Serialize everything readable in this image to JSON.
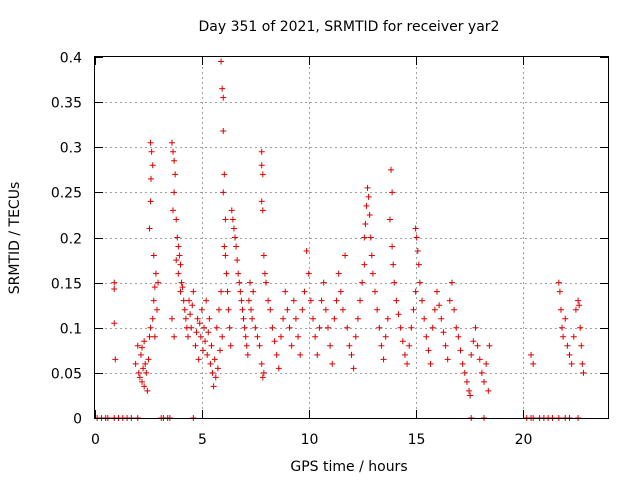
{
  "chart_data": {
    "type": "scatter",
    "title": "Day 351 of 2021, SRMTID for receiver yar2",
    "xlabel": "GPS time / hours",
    "ylabel": "SRMTID / TECUs",
    "xlim": [
      0,
      24
    ],
    "ylim": [
      0,
      0.4
    ],
    "x_ticks": [
      0,
      5,
      10,
      15,
      20
    ],
    "x_tick_labels": [
      "0",
      "5",
      "10",
      "15",
      "20"
    ],
    "y_ticks": [
      0,
      0.05,
      0.1,
      0.15,
      0.2,
      0.25,
      0.3,
      0.35,
      0.4
    ],
    "y_tick_labels": [
      "0",
      "0.05",
      "0.1",
      "0.15",
      "0.2",
      "0.25",
      "0.3",
      "0.35",
      "0.4"
    ],
    "grid": true,
    "marker": "plus",
    "color": "#e00000",
    "series": [
      {
        "name": "SRMTID",
        "points": [
          [
            0.1,
            0
          ],
          [
            0.3,
            0
          ],
          [
            0.5,
            0
          ],
          [
            0.6,
            0
          ],
          [
            0.9,
            0
          ],
          [
            1.1,
            0
          ],
          [
            1.3,
            0
          ],
          [
            1.5,
            0
          ],
          [
            1.7,
            0
          ],
          [
            2.0,
            0
          ],
          [
            3.1,
            0
          ],
          [
            3.2,
            0
          ],
          [
            3.4,
            0
          ],
          [
            3.5,
            0
          ],
          [
            4.6,
            0
          ],
          [
            17.6,
            0
          ],
          [
            18.2,
            0
          ],
          [
            20.2,
            0
          ],
          [
            20.4,
            0
          ],
          [
            20.5,
            0
          ],
          [
            20.8,
            0
          ],
          [
            21.0,
            0
          ],
          [
            21.2,
            0
          ],
          [
            21.4,
            0
          ],
          [
            21.7,
            0
          ],
          [
            22.0,
            0
          ],
          [
            22.2,
            0
          ],
          [
            22.6,
            0
          ],
          [
            0.9,
            0.15
          ],
          [
            0.9,
            0.143
          ],
          [
            0.9,
            0.105
          ],
          [
            0.95,
            0.065
          ],
          [
            1.9,
            0.06
          ],
          [
            2.0,
            0.08
          ],
          [
            2.05,
            0.05
          ],
          [
            2.1,
            0.045
          ],
          [
            2.15,
            0.07
          ],
          [
            2.2,
            0.04
          ],
          [
            2.25,
            0.055
          ],
          [
            2.3,
            0.035
          ],
          [
            2.35,
            0.06
          ],
          [
            2.4,
            0.05
          ],
          [
            2.45,
            0.03
          ],
          [
            2.5,
            0.065
          ],
          [
            2.55,
            0.09
          ],
          [
            2.6,
            0.1
          ],
          [
            2.3,
            0.085
          ],
          [
            2.2,
            0.078
          ],
          [
            2.55,
            0.21
          ],
          [
            2.6,
            0.24
          ],
          [
            2.62,
            0.265
          ],
          [
            2.65,
            0.295
          ],
          [
            2.6,
            0.305
          ],
          [
            2.7,
            0.28
          ],
          [
            2.75,
            0.13
          ],
          [
            2.8,
            0.145
          ],
          [
            2.85,
            0.16
          ],
          [
            2.9,
            0.12
          ],
          [
            2.95,
            0.15
          ],
          [
            2.7,
            0.11
          ],
          [
            2.8,
            0.09
          ],
          [
            2.75,
            0.18
          ],
          [
            3.6,
            0.305
          ],
          [
            3.65,
            0.295
          ],
          [
            3.7,
            0.285
          ],
          [
            3.75,
            0.27
          ],
          [
            3.7,
            0.25
          ],
          [
            3.65,
            0.23
          ],
          [
            3.8,
            0.22
          ],
          [
            3.85,
            0.2
          ],
          [
            3.9,
            0.19
          ],
          [
            3.95,
            0.18
          ],
          [
            4.0,
            0.17
          ],
          [
            4.05,
            0.15
          ],
          [
            4.1,
            0.145
          ],
          [
            4.15,
            0.13
          ],
          [
            4.2,
            0.12
          ],
          [
            4.25,
            0.11
          ],
          [
            4.3,
            0.1
          ],
          [
            4.35,
            0.09
          ],
          [
            4.0,
            0.14
          ],
          [
            3.8,
            0.175
          ],
          [
            3.9,
            0.16
          ],
          [
            4.4,
            0.13
          ],
          [
            4.45,
            0.115
          ],
          [
            4.5,
            0.1
          ],
          [
            4.55,
            0.125
          ],
          [
            4.6,
            0.14
          ],
          [
            3.6,
            0.11
          ],
          [
            3.7,
            0.09
          ],
          [
            4.7,
            0.08
          ],
          [
            4.75,
            0.095
          ],
          [
            4.8,
            0.11
          ],
          [
            4.85,
            0.065
          ],
          [
            4.9,
            0.105
          ],
          [
            4.95,
            0.09
          ],
          [
            5.0,
            0.12
          ],
          [
            5.05,
            0.075
          ],
          [
            5.1,
            0.1
          ],
          [
            5.15,
            0.085
          ],
          [
            5.2,
            0.13
          ],
          [
            5.25,
            0.07
          ],
          [
            5.3,
            0.095
          ],
          [
            5.35,
            0.11
          ],
          [
            5.4,
            0.06
          ],
          [
            5.45,
            0.08
          ],
          [
            5.5,
            0.05
          ],
          [
            5.55,
            0.035
          ],
          [
            5.6,
            0.065
          ],
          [
            5.65,
            0.045
          ],
          [
            5.7,
            0.1
          ],
          [
            5.75,
            0.055
          ],
          [
            5.8,
            0.12
          ],
          [
            5.85,
            0.075
          ],
          [
            5.9,
            0.14
          ],
          [
            5.95,
            0.09
          ],
          [
            5.9,
            0.395
          ],
          [
            5.95,
            0.365
          ],
          [
            6.0,
            0.355
          ],
          [
            6.0,
            0.318
          ],
          [
            6.05,
            0.27
          ],
          [
            6.0,
            0.25
          ],
          [
            6.1,
            0.22
          ],
          [
            6.05,
            0.19
          ],
          [
            6.1,
            0.18
          ],
          [
            6.15,
            0.16
          ],
          [
            6.2,
            0.14
          ],
          [
            6.25,
            0.12
          ],
          [
            6.3,
            0.1
          ],
          [
            6.35,
            0.08
          ],
          [
            6.4,
            0.23
          ],
          [
            6.45,
            0.22
          ],
          [
            6.5,
            0.21
          ],
          [
            6.55,
            0.2
          ],
          [
            6.6,
            0.19
          ],
          [
            6.65,
            0.175
          ],
          [
            6.7,
            0.16
          ],
          [
            6.75,
            0.15
          ],
          [
            6.8,
            0.14
          ],
          [
            6.85,
            0.13
          ],
          [
            6.9,
            0.12
          ],
          [
            6.95,
            0.11
          ],
          [
            7.0,
            0.1
          ],
          [
            7.05,
            0.09
          ],
          [
            7.1,
            0.08
          ],
          [
            7.15,
            0.07
          ],
          [
            7.2,
            0.13
          ],
          [
            7.25,
            0.15
          ],
          [
            7.3,
            0.12
          ],
          [
            7.35,
            0.11
          ],
          [
            7.4,
            0.14
          ],
          [
            7.5,
            0.1
          ],
          [
            7.6,
            0.09
          ],
          [
            7.7,
            0.08
          ],
          [
            7.8,
            0.06
          ],
          [
            7.85,
            0.045
          ],
          [
            7.9,
            0.05
          ],
          [
            7.8,
            0.295
          ],
          [
            7.8,
            0.28
          ],
          [
            7.85,
            0.27
          ],
          [
            7.8,
            0.24
          ],
          [
            7.85,
            0.23
          ],
          [
            7.9,
            0.18
          ],
          [
            7.95,
            0.16
          ],
          [
            8.0,
            0.15
          ],
          [
            8.1,
            0.13
          ],
          [
            8.2,
            0.12
          ],
          [
            8.3,
            0.1
          ],
          [
            8.4,
            0.085
          ],
          [
            8.5,
            0.07
          ],
          [
            8.6,
            0.055
          ],
          [
            8.7,
            0.09
          ],
          [
            8.8,
            0.11
          ],
          [
            8.9,
            0.14
          ],
          [
            9.0,
            0.12
          ],
          [
            9.1,
            0.1
          ],
          [
            9.2,
            0.08
          ],
          [
            9.3,
            0.13
          ],
          [
            9.4,
            0.11
          ],
          [
            9.5,
            0.09
          ],
          [
            9.6,
            0.07
          ],
          [
            9.7,
            0.12
          ],
          [
            9.8,
            0.14
          ],
          [
            9.9,
            0.185
          ],
          [
            10.0,
            0.16
          ],
          [
            10.1,
            0.13
          ],
          [
            10.2,
            0.11
          ],
          [
            10.3,
            0.09
          ],
          [
            10.4,
            0.07
          ],
          [
            10.5,
            0.1
          ],
          [
            10.6,
            0.13
          ],
          [
            10.7,
            0.15
          ],
          [
            10.8,
            0.12
          ],
          [
            10.9,
            0.1
          ],
          [
            11.0,
            0.08
          ],
          [
            11.1,
            0.06
          ],
          [
            11.2,
            0.11
          ],
          [
            11.3,
            0.13
          ],
          [
            11.4,
            0.16
          ],
          [
            11.5,
            0.14
          ],
          [
            11.6,
            0.12
          ],
          [
            11.7,
            0.18
          ],
          [
            11.8,
            0.1
          ],
          [
            11.9,
            0.08
          ],
          [
            12.0,
            0.07
          ],
          [
            12.1,
            0.055
          ],
          [
            12.2,
            0.09
          ],
          [
            12.3,
            0.11
          ],
          [
            12.4,
            0.13
          ],
          [
            12.5,
            0.15
          ],
          [
            12.6,
            0.17
          ],
          [
            12.6,
            0.2
          ],
          [
            12.65,
            0.215
          ],
          [
            12.7,
            0.235
          ],
          [
            12.75,
            0.255
          ],
          [
            12.8,
            0.245
          ],
          [
            12.85,
            0.225
          ],
          [
            12.9,
            0.2
          ],
          [
            12.95,
            0.18
          ],
          [
            13.0,
            0.16
          ],
          [
            13.1,
            0.14
          ],
          [
            13.2,
            0.12
          ],
          [
            13.3,
            0.1
          ],
          [
            13.4,
            0.08
          ],
          [
            13.5,
            0.065
          ],
          [
            13.6,
            0.09
          ],
          [
            13.7,
            0.11
          ],
          [
            13.8,
            0.22
          ],
          [
            13.85,
            0.275
          ],
          [
            13.9,
            0.25
          ],
          [
            13.9,
            0.19
          ],
          [
            13.95,
            0.17
          ],
          [
            14.0,
            0.15
          ],
          [
            14.1,
            0.13
          ],
          [
            14.2,
            0.115
          ],
          [
            14.3,
            0.1
          ],
          [
            14.4,
            0.085
          ],
          [
            14.5,
            0.07
          ],
          [
            14.6,
            0.06
          ],
          [
            14.7,
            0.08
          ],
          [
            14.8,
            0.1
          ],
          [
            14.9,
            0.12
          ],
          [
            15.0,
            0.14
          ],
          [
            15.0,
            0.21
          ],
          [
            15.05,
            0.2
          ],
          [
            15.1,
            0.185
          ],
          [
            15.15,
            0.17
          ],
          [
            15.2,
            0.15
          ],
          [
            15.3,
            0.13
          ],
          [
            15.4,
            0.11
          ],
          [
            15.5,
            0.09
          ],
          [
            15.6,
            0.075
          ],
          [
            15.7,
            0.06
          ],
          [
            15.8,
            0.1
          ],
          [
            15.9,
            0.12
          ],
          [
            16.0,
            0.14
          ],
          [
            16.1,
            0.125
          ],
          [
            16.2,
            0.11
          ],
          [
            16.3,
            0.095
          ],
          [
            16.4,
            0.08
          ],
          [
            16.5,
            0.065
          ],
          [
            16.6,
            0.13
          ],
          [
            16.7,
            0.15
          ],
          [
            16.8,
            0.12
          ],
          [
            16.9,
            0.1
          ],
          [
            17.0,
            0.09
          ],
          [
            17.1,
            0.075
          ],
          [
            17.2,
            0.06
          ],
          [
            17.3,
            0.05
          ],
          [
            17.4,
            0.04
          ],
          [
            17.5,
            0.03
          ],
          [
            17.55,
            0.025
          ],
          [
            17.6,
            0.07
          ],
          [
            17.7,
            0.085
          ],
          [
            17.8,
            0.1
          ],
          [
            17.9,
            0.08
          ],
          [
            18.0,
            0.065
          ],
          [
            18.1,
            0.05
          ],
          [
            18.2,
            0.04
          ],
          [
            18.3,
            0.06
          ],
          [
            18.4,
            0.03
          ],
          [
            18.45,
            0.08
          ],
          [
            20.4,
            0.07
          ],
          [
            20.5,
            0.06
          ],
          [
            21.7,
            0.15
          ],
          [
            21.75,
            0.14
          ],
          [
            21.8,
            0.12
          ],
          [
            21.85,
            0.1
          ],
          [
            21.9,
            0.09
          ],
          [
            22.0,
            0.11
          ],
          [
            22.1,
            0.08
          ],
          [
            22.2,
            0.07
          ],
          [
            22.3,
            0.06
          ],
          [
            22.4,
            0.09
          ],
          [
            22.5,
            0.12
          ],
          [
            22.6,
            0.13
          ],
          [
            22.65,
            0.125
          ],
          [
            22.7,
            0.1
          ],
          [
            22.75,
            0.08
          ],
          [
            22.8,
            0.06
          ],
          [
            22.85,
            0.05
          ]
        ]
      }
    ]
  }
}
